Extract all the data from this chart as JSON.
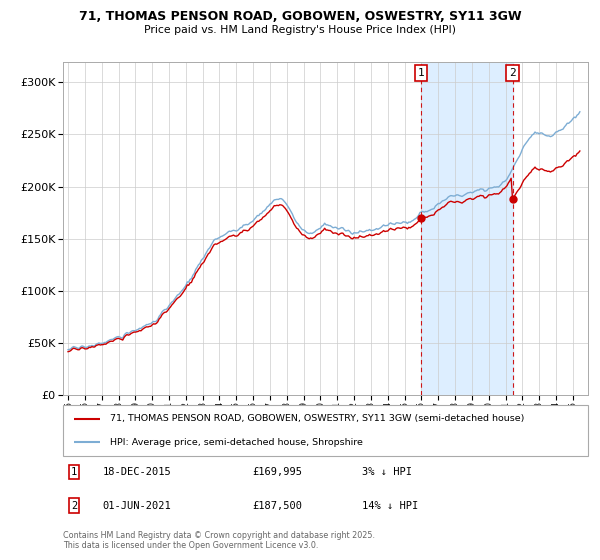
{
  "title1": "71, THOMAS PENSON ROAD, GOBOWEN, OSWESTRY, SY11 3GW",
  "title2": "Price paid vs. HM Land Registry's House Price Index (HPI)",
  "legend_property": "71, THOMAS PENSON ROAD, GOBOWEN, OSWESTRY, SY11 3GW (semi-detached house)",
  "legend_hpi": "HPI: Average price, semi-detached house, Shropshire",
  "marker1_date": "18-DEC-2015",
  "marker1_price": "£169,995",
  "marker1_hpi": "3% ↓ HPI",
  "marker2_date": "01-JUN-2021",
  "marker2_price": "£187,500",
  "marker2_hpi": "14% ↓ HPI",
  "footnote": "Contains HM Land Registry data © Crown copyright and database right 2025.\nThis data is licensed under the Open Government Licence v3.0.",
  "property_color": "#cc0000",
  "hpi_color": "#7dadd4",
  "shade_color": "#ddeeff",
  "marker_color": "#cc0000",
  "background_color": "#ffffff",
  "grid_color": "#cccccc",
  "ylim_min": 0,
  "ylim_max": 320000,
  "purchase1_year": 2015.96,
  "purchase1_price": 169995,
  "purchase2_year": 2021.42,
  "purchase2_price": 187500
}
